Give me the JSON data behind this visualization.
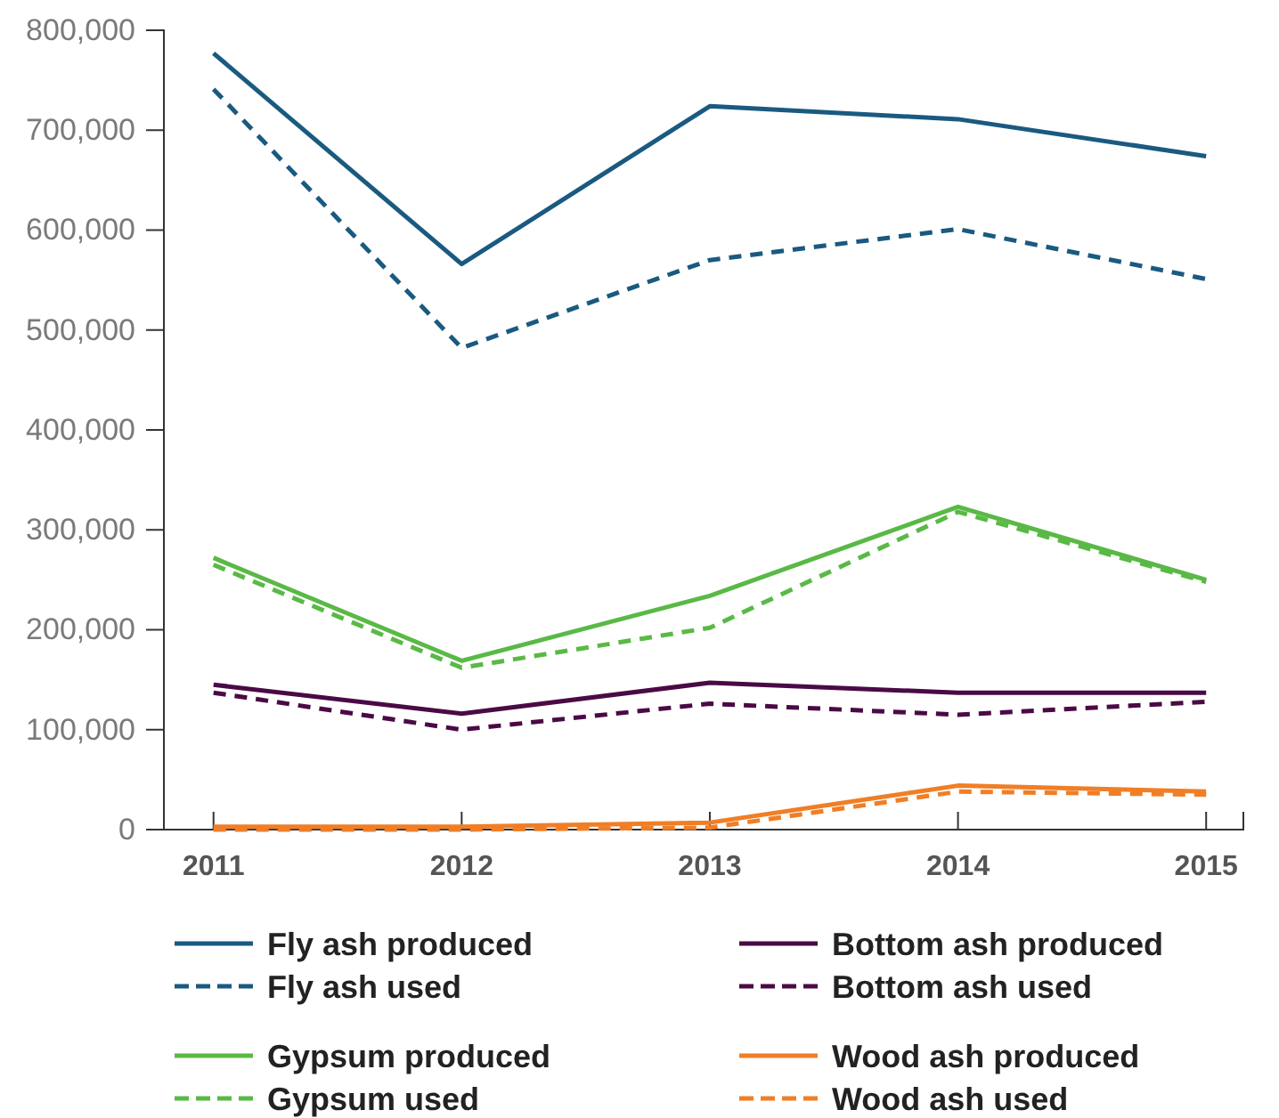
{
  "chart_data": {
    "type": "line",
    "x": [
      2011,
      2012,
      2013,
      2014,
      2015
    ],
    "xlim": [
      2010.8,
      2015.15
    ],
    "xticks": [
      2011,
      2012,
      2013,
      2014,
      2015
    ],
    "ylim": [
      0,
      800000
    ],
    "yticks": [
      {
        "value": 0,
        "label": "0"
      },
      {
        "value": 100000,
        "label": "100,000"
      },
      {
        "value": 200000,
        "label": "200,000"
      },
      {
        "value": 300000,
        "label": "300,000"
      },
      {
        "value": 400000,
        "label": "400,000"
      },
      {
        "value": 500000,
        "label": "500,000"
      },
      {
        "value": 600000,
        "label": "600,000"
      },
      {
        "value": 700000,
        "label": "700,000"
      },
      {
        "value": 800000,
        "label": "800,000"
      }
    ],
    "grid": false,
    "legend": "bottom",
    "marker": "none",
    "series": [
      {
        "name": "Fly ash produced",
        "color": "#1a5a80",
        "line_style": "solid",
        "values": [
          777000,
          566000,
          724000,
          711000,
          674000
        ]
      },
      {
        "name": "Fly ash used",
        "color": "#1a5a80",
        "line_style": "dashed",
        "values": [
          741000,
          482000,
          570000,
          601000,
          551000
        ]
      },
      {
        "name": "Bottom ash produced",
        "color": "#4a0a45",
        "line_style": "solid",
        "values": [
          145000,
          116000,
          147000,
          137000,
          137000
        ]
      },
      {
        "name": "Bottom ash used",
        "color": "#4a0a45",
        "line_style": "dashed",
        "values": [
          137000,
          100000,
          126000,
          115000,
          128000
        ]
      },
      {
        "name": "Gypsum produced",
        "color": "#5ab946",
        "line_style": "solid",
        "values": [
          272000,
          169000,
          234000,
          323000,
          250000
        ]
      },
      {
        "name": "Gypsum used",
        "color": "#5ab946",
        "line_style": "dashed",
        "values": [
          265000,
          162000,
          202000,
          318000,
          248000
        ]
      },
      {
        "name": "Wood ash produced",
        "color": "#f07e26",
        "line_style": "solid",
        "values": [
          3000,
          3000,
          7000,
          44000,
          38000
        ]
      },
      {
        "name": "Wood ash used",
        "color": "#f07e26",
        "line_style": "dashed",
        "values": [
          0,
          0,
          2000,
          38000,
          35000
        ]
      }
    ]
  }
}
